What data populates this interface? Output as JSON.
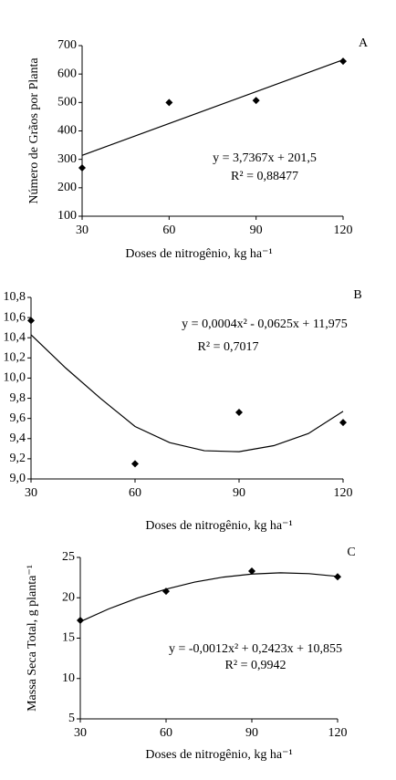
{
  "chart_data": [
    {
      "type": "scatter",
      "panel": "A",
      "equation": "y = 3,7367x + 201,5",
      "r2": "R² = 0,88477",
      "x_label": "Doses de nitrogênio,  kg ha⁻¹",
      "y_label": "Número de Grãos por Planta",
      "x": [
        30,
        60,
        90,
        120
      ],
      "values": [
        270,
        500,
        507,
        645
      ],
      "color": "#000000",
      "fit": {
        "x": [
          30,
          120
        ],
        "values": [
          314,
          650
        ]
      },
      "xlim": [
        30,
        120
      ],
      "xticks": [
        30,
        60,
        90,
        120
      ],
      "ylim": [
        100,
        700
      ],
      "yticks": [
        100,
        200,
        300,
        400,
        500,
        600,
        700
      ]
    },
    {
      "type": "scatter",
      "panel": "B",
      "equation": "y = 0,0004x² - 0,0625x + 11,975",
      "r2": "R² = 0,7017",
      "x_label": "Doses de nitrogênio, kg ha⁻¹",
      "x": [
        30,
        60,
        90,
        120
      ],
      "values": [
        10.57,
        9.15,
        9.66,
        9.56
      ],
      "color": "#000000",
      "fit": {
        "x": [
          30,
          40,
          50,
          60,
          70,
          80,
          90,
          100,
          110,
          120
        ],
        "values": [
          10.43,
          10.1,
          9.8,
          9.52,
          9.36,
          9.28,
          9.27,
          9.33,
          9.45,
          9.67
        ]
      },
      "xlim": [
        30,
        120
      ],
      "xticks": [
        30,
        60,
        90,
        120
      ],
      "ylim": [
        9.0,
        10.8
      ],
      "yticks": [
        {
          "value": 9.0,
          "label": "9,0"
        },
        {
          "value": 9.2,
          "label": "9,2"
        },
        {
          "value": 9.4,
          "label": "9,4"
        },
        {
          "value": 9.6,
          "label": "9,6"
        },
        {
          "value": 9.8,
          "label": "9,8"
        },
        {
          "value": 10.0,
          "label": "10,0"
        },
        {
          "value": 10.2,
          "label": "10,2"
        },
        {
          "value": 10.4,
          "label": "10,4"
        },
        {
          "value": 10.6,
          "label": "10,6"
        },
        {
          "value": 10.8,
          "label": "10,8"
        }
      ]
    },
    {
      "type": "scatter",
      "panel": "C",
      "equation": "y = -0,0012x² + 0,2423x + 10,855",
      "r2": "R² = 0,9942",
      "x_label": "Doses de nitrogênio,  kg ha⁻¹",
      "y_label": "Massa  Seca Total, g planta⁻¹",
      "x": [
        30,
        60,
        90,
        120
      ],
      "values": [
        17.2,
        20.8,
        23.3,
        22.6
      ],
      "color": "#000000",
      "fit": {
        "x": [
          30,
          40,
          50,
          60,
          70,
          80,
          90,
          100,
          110,
          120
        ],
        "values": [
          17.04,
          18.63,
          19.97,
          21.07,
          21.94,
          22.56,
          22.94,
          23.09,
          22.99,
          22.65
        ]
      },
      "xlim": [
        30,
        120
      ],
      "xticks": [
        30,
        60,
        90,
        120
      ],
      "ylim": [
        5,
        25
      ],
      "yticks": [
        5,
        10,
        15,
        20,
        25
      ]
    }
  ]
}
